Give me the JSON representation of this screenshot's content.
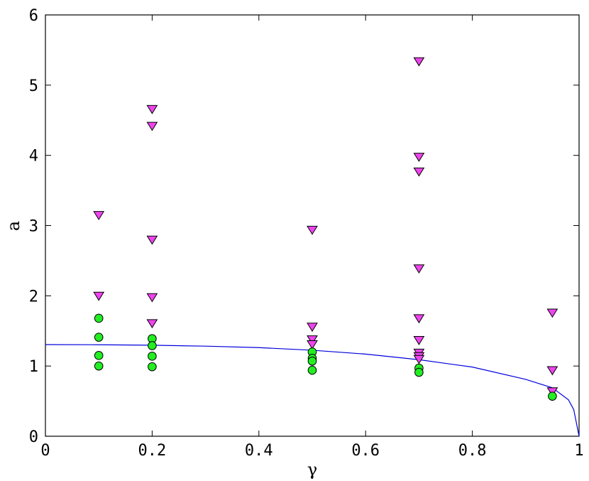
{
  "chart_data": {
    "type": "scatter",
    "xlabel": "γ",
    "ylabel": "a",
    "xlim": [
      0,
      1
    ],
    "ylim": [
      0,
      6
    ],
    "xticks": [
      "0",
      "0.2",
      "0.4",
      "0.6",
      "0.8",
      "1"
    ],
    "yticks": [
      "0",
      "1",
      "2",
      "3",
      "4",
      "5",
      "6"
    ],
    "grid": false,
    "series": [
      {
        "marker": "triangle-down",
        "color": "#ee44ee",
        "points": [
          [
            0.1,
            3.15
          ],
          [
            0.1,
            2.0
          ],
          [
            0.2,
            4.66
          ],
          [
            0.2,
            4.42
          ],
          [
            0.2,
            2.8
          ],
          [
            0.2,
            1.98
          ],
          [
            0.2,
            1.61
          ],
          [
            0.5,
            2.94
          ],
          [
            0.5,
            1.56
          ],
          [
            0.5,
            1.38
          ],
          [
            0.5,
            1.31
          ],
          [
            0.7,
            5.34
          ],
          [
            0.7,
            3.98
          ],
          [
            0.7,
            3.77
          ],
          [
            0.7,
            2.39
          ],
          [
            0.7,
            1.68
          ],
          [
            0.7,
            1.37
          ],
          [
            0.7,
            1.19
          ],
          [
            0.7,
            1.14
          ],
          [
            0.7,
            1.1
          ],
          [
            0.95,
            1.76
          ],
          [
            0.95,
            0.94
          ],
          [
            0.95,
            0.64
          ]
        ]
      },
      {
        "marker": "circle",
        "color": "#22ee22",
        "points": [
          [
            0.1,
            1.68
          ],
          [
            0.1,
            1.41
          ],
          [
            0.1,
            1.15
          ],
          [
            0.1,
            1.0
          ],
          [
            0.2,
            1.39
          ],
          [
            0.2,
            1.29
          ],
          [
            0.2,
            1.14
          ],
          [
            0.2,
            0.99
          ],
          [
            0.5,
            1.2
          ],
          [
            0.5,
            1.11
          ],
          [
            0.5,
            1.07
          ],
          [
            0.5,
            0.94
          ],
          [
            0.7,
            0.97
          ],
          [
            0.7,
            0.91
          ],
          [
            0.95,
            0.57
          ]
        ]
      },
      {
        "marker": "line",
        "color": "#0000dd",
        "points": [
          [
            0,
            1.305
          ],
          [
            0.1,
            1.303
          ],
          [
            0.2,
            1.296
          ],
          [
            0.3,
            1.283
          ],
          [
            0.4,
            1.262
          ],
          [
            0.5,
            1.225
          ],
          [
            0.6,
            1.17
          ],
          [
            0.7,
            1.09
          ],
          [
            0.8,
            0.985
          ],
          [
            0.9,
            0.81
          ],
          [
            0.95,
            0.69
          ],
          [
            0.98,
            0.52
          ],
          [
            0.99,
            0.38
          ],
          [
            1.0,
            0.0
          ]
        ]
      }
    ]
  }
}
